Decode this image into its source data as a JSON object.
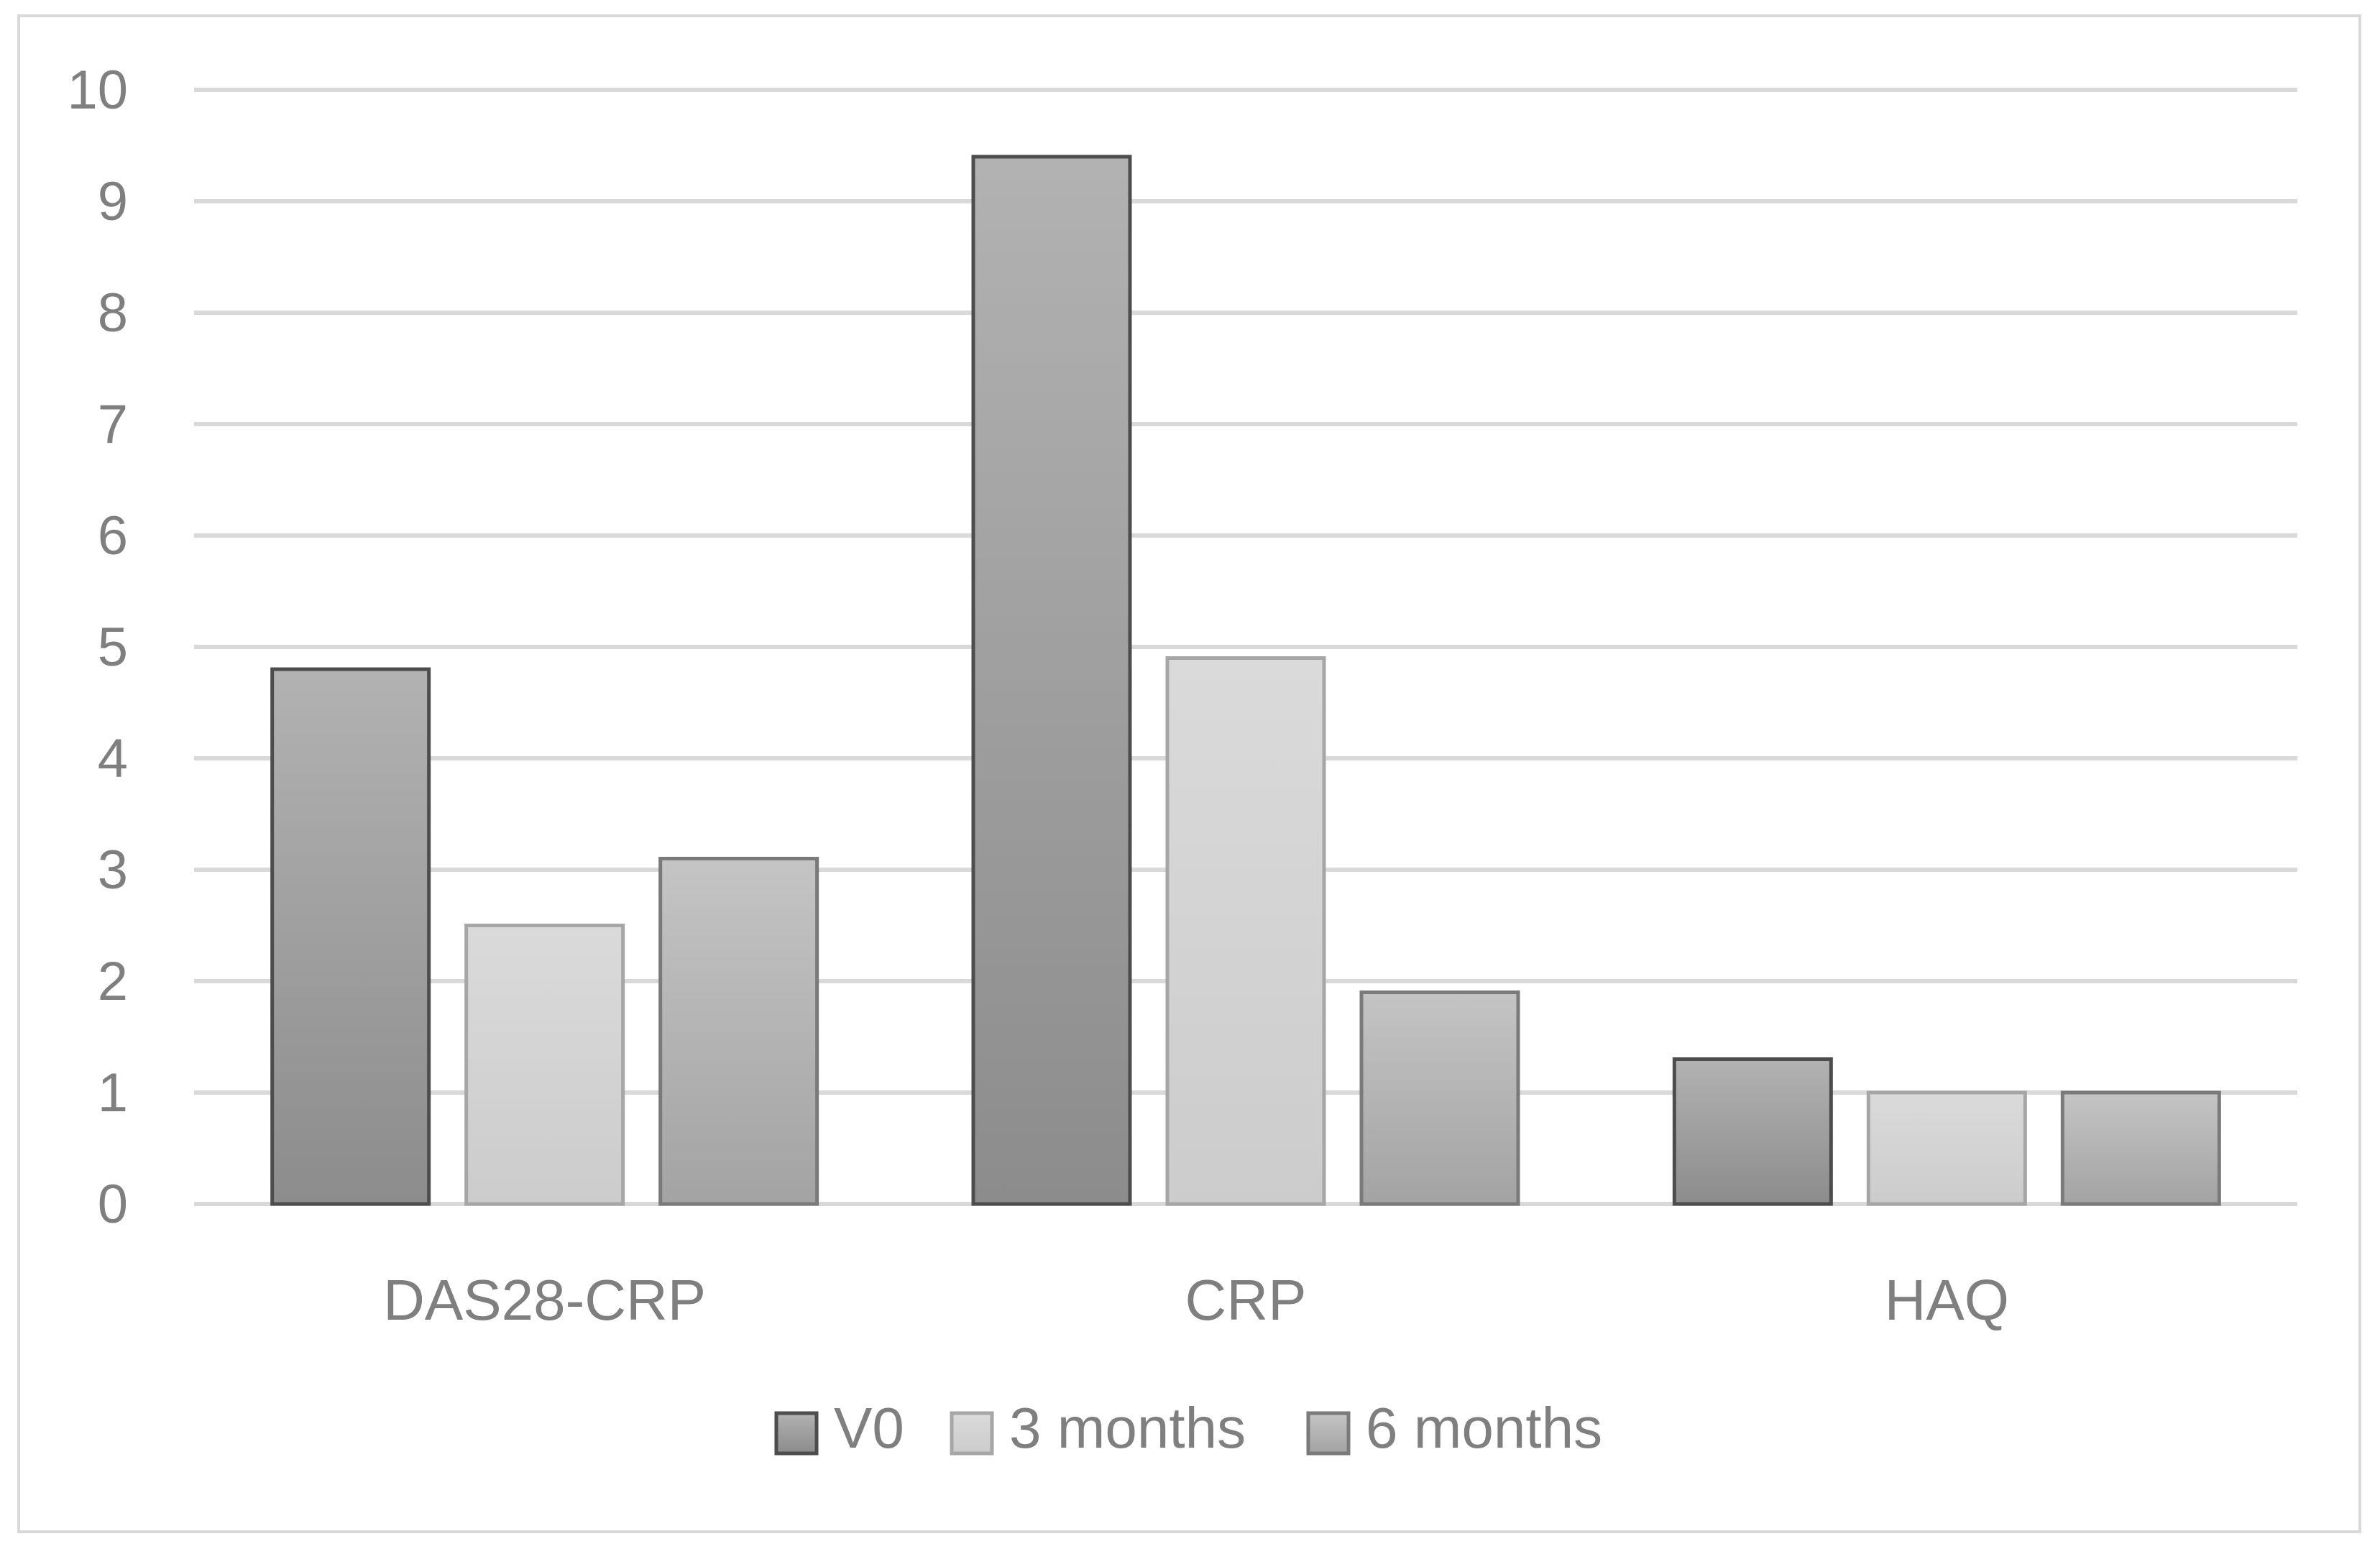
{
  "chart_data": {
    "type": "bar",
    "title": "",
    "xlabel": "",
    "ylabel": "",
    "categories": [
      "DAS28-CRP",
      "CRP",
      "HAQ"
    ],
    "series": [
      {
        "name": "V0",
        "values": [
          4.8,
          9.4,
          1.3
        ],
        "color": "#9a9a9a",
        "gradient_top": "#b2b2b2",
        "gradient_bottom": "#8c8c8c",
        "stroke": "#4d4d4d"
      },
      {
        "name": "3 months",
        "values": [
          2.5,
          4.9,
          1.0
        ],
        "color": "#d6d6d6",
        "gradient_top": "#dadada",
        "gradient_bottom": "#cccccc",
        "stroke": "#a6a6a6"
      },
      {
        "name": "6 months",
        "values": [
          3.1,
          1.9,
          1.0
        ],
        "color": "#b4b4b4",
        "gradient_top": "#c4c4c4",
        "gradient_bottom": "#a3a3a3",
        "stroke": "#7a7a7a"
      }
    ],
    "ylim": [
      0,
      10
    ],
    "yticks": [
      "0",
      "1",
      "2",
      "3",
      "4",
      "5",
      "6",
      "7",
      "8",
      "9",
      "10"
    ],
    "grid": true,
    "legend_position": "bottom"
  }
}
